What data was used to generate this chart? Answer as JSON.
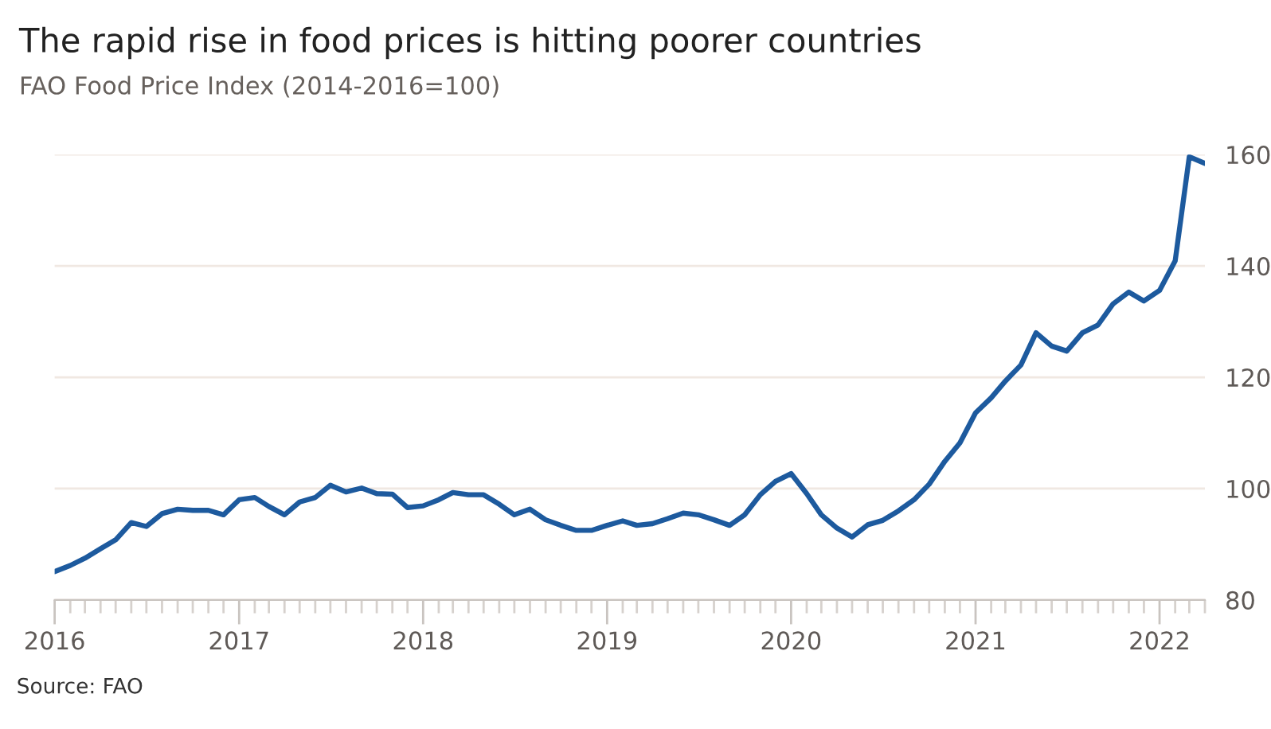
{
  "chart_data": {
    "type": "line",
    "title": "The rapid rise in food prices is hitting poorer countries",
    "subtitle": "FAO Food Price Index (2014-2016=100)",
    "annotations": [
      "Source: FAO"
    ],
    "x": [
      "2016-01",
      "2016-02",
      "2016-03",
      "2016-04",
      "2016-05",
      "2016-06",
      "2016-07",
      "2016-08",
      "2016-09",
      "2016-10",
      "2016-11",
      "2016-12",
      "2017-01",
      "2017-02",
      "2017-03",
      "2017-04",
      "2017-05",
      "2017-06",
      "2017-07",
      "2017-08",
      "2017-09",
      "2017-10",
      "2017-11",
      "2017-12",
      "2018-01",
      "2018-02",
      "2018-03",
      "2018-04",
      "2018-05",
      "2018-06",
      "2018-07",
      "2018-08",
      "2018-09",
      "2018-10",
      "2018-11",
      "2018-12",
      "2019-01",
      "2019-02",
      "2019-03",
      "2019-04",
      "2019-05",
      "2019-06",
      "2019-07",
      "2019-08",
      "2019-09",
      "2019-10",
      "2019-11",
      "2019-12",
      "2020-01",
      "2020-02",
      "2020-03",
      "2020-04",
      "2020-05",
      "2020-06",
      "2020-07",
      "2020-08",
      "2020-09",
      "2020-10",
      "2020-11",
      "2020-12",
      "2021-01",
      "2021-02",
      "2021-03",
      "2021-04",
      "2021-05",
      "2021-06",
      "2021-07",
      "2021-08",
      "2021-09",
      "2021-10",
      "2021-11",
      "2021-12",
      "2022-01",
      "2022-02",
      "2022-03",
      "2022-04"
    ],
    "series": [
      {
        "color": "#1d5a9e",
        "values": [
          85.1,
          86.2,
          87.5,
          89.2,
          90.8,
          93.9,
          93.2,
          95.5,
          96.3,
          96.1,
          96.1,
          95.3,
          98.0,
          98.4,
          96.8,
          95.3,
          97.6,
          98.4,
          100.6,
          99.4,
          100.1,
          99.1,
          99.0,
          96.6,
          96.9,
          98.0,
          99.3,
          98.9,
          98.9,
          97.2,
          95.3,
          96.3,
          94.4,
          93.4,
          92.5,
          92.5,
          93.4,
          94.2,
          93.4,
          93.7,
          94.6,
          95.6,
          95.3,
          94.4,
          93.4,
          95.3,
          98.9,
          101.3,
          102.7,
          99.1,
          95.3,
          92.9,
          91.3,
          93.5,
          94.3,
          96.0,
          98.0,
          100.8,
          104.9,
          108.2,
          113.6,
          116.3,
          119.3,
          122.2,
          128.0,
          125.6,
          124.7,
          128.0,
          129.4,
          133.2,
          135.3,
          133.7,
          135.6,
          140.9,
          159.6,
          158.4
        ]
      }
    ],
    "xlim": [
      "2016-01",
      "2022-04"
    ],
    "xticks": [
      {
        "value": "2016-01",
        "label": "2016"
      },
      {
        "value": "2016-02",
        "label": null
      },
      {
        "value": "2016-03",
        "label": null
      },
      {
        "value": "2016-04",
        "label": null
      },
      {
        "value": "2016-05",
        "label": null
      },
      {
        "value": "2016-06",
        "label": null
      },
      {
        "value": "2016-07",
        "label": null
      },
      {
        "value": "2016-08",
        "label": null
      },
      {
        "value": "2016-09",
        "label": null
      },
      {
        "value": "2016-10",
        "label": null
      },
      {
        "value": "2016-11",
        "label": null
      },
      {
        "value": "2016-12",
        "label": null
      },
      {
        "value": "2017-01",
        "label": "2017"
      },
      {
        "value": "2017-02",
        "label": null
      },
      {
        "value": "2017-03",
        "label": null
      },
      {
        "value": "2017-04",
        "label": null
      },
      {
        "value": "2017-05",
        "label": null
      },
      {
        "value": "2017-06",
        "label": null
      },
      {
        "value": "2017-07",
        "label": null
      },
      {
        "value": "2017-08",
        "label": null
      },
      {
        "value": "2017-09",
        "label": null
      },
      {
        "value": "2017-10",
        "label": null
      },
      {
        "value": "2017-11",
        "label": null
      },
      {
        "value": "2017-12",
        "label": null
      },
      {
        "value": "2018-01",
        "label": "2018"
      },
      {
        "value": "2018-02",
        "label": null
      },
      {
        "value": "2018-03",
        "label": null
      },
      {
        "value": "2018-04",
        "label": null
      },
      {
        "value": "2018-05",
        "label": null
      },
      {
        "value": "2018-06",
        "label": null
      },
      {
        "value": "2018-07",
        "label": null
      },
      {
        "value": "2018-08",
        "label": null
      },
      {
        "value": "2018-09",
        "label": null
      },
      {
        "value": "2018-10",
        "label": null
      },
      {
        "value": "2018-11",
        "label": null
      },
      {
        "value": "2018-12",
        "label": null
      },
      {
        "value": "2019-01",
        "label": "2019"
      },
      {
        "value": "2019-02",
        "label": null
      },
      {
        "value": "2019-03",
        "label": null
      },
      {
        "value": "2019-04",
        "label": null
      },
      {
        "value": "2019-05",
        "label": null
      },
      {
        "value": "2019-06",
        "label": null
      },
      {
        "value": "2019-07",
        "label": null
      },
      {
        "value": "2019-08",
        "label": null
      },
      {
        "value": "2019-09",
        "label": null
      },
      {
        "value": "2019-10",
        "label": null
      },
      {
        "value": "2019-11",
        "label": null
      },
      {
        "value": "2019-12",
        "label": null
      },
      {
        "value": "2020-01",
        "label": "2020"
      },
      {
        "value": "2020-02",
        "label": null
      },
      {
        "value": "2020-03",
        "label": null
      },
      {
        "value": "2020-04",
        "label": null
      },
      {
        "value": "2020-05",
        "label": null
      },
      {
        "value": "2020-06",
        "label": null
      },
      {
        "value": "2020-07",
        "label": null
      },
      {
        "value": "2020-08",
        "label": null
      },
      {
        "value": "2020-09",
        "label": null
      },
      {
        "value": "2020-10",
        "label": null
      },
      {
        "value": "2020-11",
        "label": null
      },
      {
        "value": "2020-12",
        "label": null
      },
      {
        "value": "2021-01",
        "label": "2021"
      },
      {
        "value": "2021-02",
        "label": null
      },
      {
        "value": "2021-03",
        "label": null
      },
      {
        "value": "2021-04",
        "label": null
      },
      {
        "value": "2021-05",
        "label": null
      },
      {
        "value": "2021-06",
        "label": null
      },
      {
        "value": "2021-07",
        "label": null
      },
      {
        "value": "2021-08",
        "label": null
      },
      {
        "value": "2021-09",
        "label": null
      },
      {
        "value": "2021-10",
        "label": null
      },
      {
        "value": "2021-11",
        "label": null
      },
      {
        "value": "2021-12",
        "label": null
      },
      {
        "value": "2022-01",
        "label": "2022"
      },
      {
        "value": "2022-02",
        "label": null
      },
      {
        "value": "2022-03",
        "label": null
      },
      {
        "value": "2022-04",
        "label": null
      }
    ],
    "ylim": [
      80,
      160
    ],
    "yticks": [
      80,
      100,
      120,
      140,
      160
    ],
    "grid": "y",
    "marker": "none",
    "line_style": "solid"
  }
}
